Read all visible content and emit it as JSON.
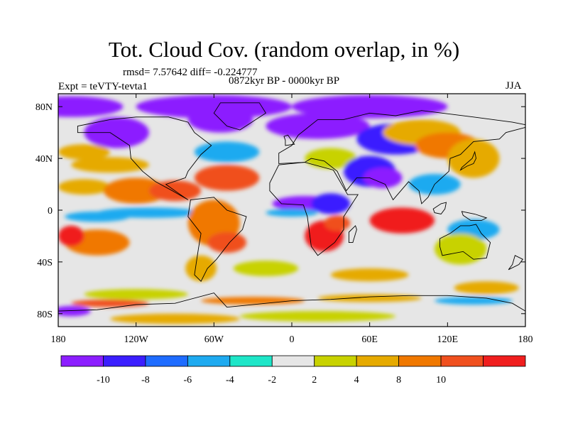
{
  "title": "Tot. Cloud Cov. (random overlap, in %)",
  "stats": "rmsd= 7.57642 diff= -0.224777",
  "period": "0872kyr BP - 0000kyr BP",
  "experiment": "Expt = teVTY-tevta1",
  "season": "JJA",
  "map": {
    "lon_range": [
      -180,
      180
    ],
    "lat_range": [
      -90,
      90
    ],
    "x_ticks": [
      {
        "lon": -180,
        "label": "180"
      },
      {
        "lon": -120,
        "label": "120W"
      },
      {
        "lon": -60,
        "label": "60W"
      },
      {
        "lon": 0,
        "label": "0"
      },
      {
        "lon": 60,
        "label": "60E"
      },
      {
        "lon": 120,
        "label": "120E"
      },
      {
        "lon": 180,
        "label": "180"
      }
    ],
    "y_ticks": [
      {
        "lat": 80,
        "label": "80N"
      },
      {
        "lat": 40,
        "label": "40N"
      },
      {
        "lat": 0,
        "label": "0"
      },
      {
        "lat": -40,
        "label": "40S"
      },
      {
        "lat": -80,
        "label": "80S"
      }
    ],
    "background_class": "-2 to 2",
    "regions": [
      {
        "lon": -170,
        "lat": 80,
        "rx": 40,
        "ry": 8,
        "class": -11
      },
      {
        "lon": -60,
        "lat": 80,
        "rx": 60,
        "ry": 9,
        "class": -11
      },
      {
        "lon": 60,
        "lat": 80,
        "rx": 60,
        "ry": 9,
        "class": -11
      },
      {
        "lon": -135,
        "lat": 60,
        "rx": 25,
        "ry": 12,
        "class": -11
      },
      {
        "lon": -55,
        "lat": 70,
        "rx": 25,
        "ry": 10,
        "class": -11
      },
      {
        "lon": 20,
        "lat": 65,
        "rx": 40,
        "ry": 10,
        "class": -11
      },
      {
        "lon": 80,
        "lat": 55,
        "rx": 30,
        "ry": 12,
        "class": -9
      },
      {
        "lon": -160,
        "lat": 45,
        "rx": 20,
        "ry": 6,
        "class": 5
      },
      {
        "lon": -140,
        "lat": 35,
        "rx": 30,
        "ry": 6,
        "class": 5
      },
      {
        "lon": -50,
        "lat": 45,
        "rx": 25,
        "ry": 8,
        "class": -5
      },
      {
        "lon": 100,
        "lat": 60,
        "rx": 30,
        "ry": 10,
        "class": 5
      },
      {
        "lon": 120,
        "lat": 50,
        "rx": 25,
        "ry": 10,
        "class": 7
      },
      {
        "lon": 140,
        "lat": 40,
        "rx": 20,
        "ry": 15,
        "class": 5
      },
      {
        "lon": 30,
        "lat": 40,
        "rx": 20,
        "ry": 8,
        "class": 3
      },
      {
        "lon": 60,
        "lat": 30,
        "rx": 20,
        "ry": 12,
        "class": -9
      },
      {
        "lon": 70,
        "lat": 25,
        "rx": 15,
        "ry": 8,
        "class": -11
      },
      {
        "lon": -160,
        "lat": 18,
        "rx": 20,
        "ry": 6,
        "class": 5
      },
      {
        "lon": -120,
        "lat": 15,
        "rx": 25,
        "ry": 10,
        "class": 7
      },
      {
        "lon": -90,
        "lat": 15,
        "rx": 20,
        "ry": 8,
        "class": 9
      },
      {
        "lon": -50,
        "lat": 25,
        "rx": 25,
        "ry": 10,
        "class": 9
      },
      {
        "lon": 110,
        "lat": 20,
        "rx": 20,
        "ry": 8,
        "class": -5
      },
      {
        "lon": -110,
        "lat": -2,
        "rx": 40,
        "ry": 4,
        "class": -5
      },
      {
        "lon": -150,
        "lat": -5,
        "rx": 25,
        "ry": 4,
        "class": -5
      },
      {
        "lon": 10,
        "lat": 5,
        "rx": 25,
        "ry": 6,
        "class": -11
      },
      {
        "lon": 30,
        "lat": 5,
        "rx": 15,
        "ry": 8,
        "class": -9
      },
      {
        "lon": 0,
        "lat": -2,
        "rx": 20,
        "ry": 3,
        "class": -5
      },
      {
        "lon": -60,
        "lat": -10,
        "rx": 20,
        "ry": 18,
        "class": 7
      },
      {
        "lon": -50,
        "lat": -25,
        "rx": 15,
        "ry": 8,
        "class": 9
      },
      {
        "lon": 25,
        "lat": -20,
        "rx": 15,
        "ry": 12,
        "class": 11
      },
      {
        "lon": 35,
        "lat": -10,
        "rx": 10,
        "ry": 6,
        "class": 9
      },
      {
        "lon": 85,
        "lat": -8,
        "rx": 25,
        "ry": 10,
        "class": 11
      },
      {
        "lon": 140,
        "lat": -15,
        "rx": 20,
        "ry": 8,
        "class": -5
      },
      {
        "lon": 130,
        "lat": -30,
        "rx": 20,
        "ry": 12,
        "class": 3
      },
      {
        "lon": -150,
        "lat": -25,
        "rx": 25,
        "ry": 10,
        "class": 7
      },
      {
        "lon": -170,
        "lat": -20,
        "rx": 10,
        "ry": 8,
        "class": 11
      },
      {
        "lon": -70,
        "lat": -45,
        "rx": 12,
        "ry": 10,
        "class": 5
      },
      {
        "lon": -20,
        "lat": -45,
        "rx": 25,
        "ry": 6,
        "class": 3
      },
      {
        "lon": 60,
        "lat": -50,
        "rx": 30,
        "ry": 5,
        "class": 5
      },
      {
        "lon": 150,
        "lat": -60,
        "rx": 25,
        "ry": 5,
        "class": 5
      },
      {
        "lon": -120,
        "lat": -65,
        "rx": 40,
        "ry": 4,
        "class": 3
      },
      {
        "lon": -140,
        "lat": -72,
        "rx": 30,
        "ry": 3,
        "class": 9
      },
      {
        "lon": -30,
        "lat": -70,
        "rx": 40,
        "ry": 3,
        "class": 7
      },
      {
        "lon": 60,
        "lat": -68,
        "rx": 40,
        "ry": 3,
        "class": 5
      },
      {
        "lon": 140,
        "lat": -70,
        "rx": 30,
        "ry": 3,
        "class": -5
      },
      {
        "lon": -170,
        "lat": -78,
        "rx": 15,
        "ry": 4,
        "class": -11
      },
      {
        "lon": 20,
        "lat": -82,
        "rx": 60,
        "ry": 4,
        "class": 3
      },
      {
        "lon": -90,
        "lat": -84,
        "rx": 50,
        "ry": 4,
        "class": 5
      }
    ],
    "land": [
      {
        "name": "north-america",
        "points": [
          [
            -165,
            65
          ],
          [
            -140,
            70
          ],
          [
            -120,
            72
          ],
          [
            -95,
            72
          ],
          [
            -80,
            68
          ],
          [
            -75,
            60
          ],
          [
            -62,
            50
          ],
          [
            -70,
            43
          ],
          [
            -80,
            30
          ],
          [
            -82,
            25
          ],
          [
            -97,
            20
          ],
          [
            -90,
            15
          ],
          [
            -83,
            10
          ],
          [
            -80,
            8
          ],
          [
            -92,
            15
          ],
          [
            -105,
            22
          ],
          [
            -115,
            30
          ],
          [
            -124,
            40
          ],
          [
            -125,
            50
          ],
          [
            -140,
            60
          ],
          [
            -165,
            60
          ]
        ]
      },
      {
        "name": "greenland",
        "points": [
          [
            -55,
            83
          ],
          [
            -25,
            83
          ],
          [
            -20,
            75
          ],
          [
            -40,
            62
          ],
          [
            -50,
            65
          ],
          [
            -60,
            75
          ]
        ]
      },
      {
        "name": "south-america",
        "points": [
          [
            -78,
            8
          ],
          [
            -60,
            10
          ],
          [
            -50,
            0
          ],
          [
            -35,
            -5
          ],
          [
            -38,
            -15
          ],
          [
            -48,
            -25
          ],
          [
            -58,
            -38
          ],
          [
            -65,
            -45
          ],
          [
            -70,
            -55
          ],
          [
            -75,
            -50
          ],
          [
            -72,
            -30
          ],
          [
            -70,
            -18
          ],
          [
            -80,
            -5
          ]
        ]
      },
      {
        "name": "eurasia",
        "points": [
          [
            -10,
            36
          ],
          [
            -10,
            44
          ],
          [
            0,
            50
          ],
          [
            5,
            58
          ],
          [
            10,
            62
          ],
          [
            20,
            70
          ],
          [
            40,
            70
          ],
          [
            60,
            75
          ],
          [
            80,
            73
          ],
          [
            100,
            77
          ],
          [
            140,
            72
          ],
          [
            170,
            68
          ],
          [
            180,
            66
          ],
          [
            180,
            64
          ],
          [
            165,
            60
          ],
          [
            160,
            55
          ],
          [
            140,
            53
          ],
          [
            130,
            43
          ],
          [
            122,
            40
          ],
          [
            121,
            30
          ],
          [
            110,
            20
          ],
          [
            105,
            10
          ],
          [
            100,
            5
          ],
          [
            98,
            15
          ],
          [
            90,
            22
          ],
          [
            78,
            8
          ],
          [
            72,
            20
          ],
          [
            60,
            25
          ],
          [
            50,
            25
          ],
          [
            42,
            15
          ],
          [
            35,
            30
          ],
          [
            25,
            38
          ],
          [
            15,
            40
          ],
          [
            10,
            37
          ]
        ]
      },
      {
        "name": "africa",
        "points": [
          [
            -17,
            21
          ],
          [
            -10,
            35
          ],
          [
            10,
            37
          ],
          [
            32,
            31
          ],
          [
            43,
            12
          ],
          [
            51,
            12
          ],
          [
            40,
            -5
          ],
          [
            40,
            -15
          ],
          [
            33,
            -25
          ],
          [
            20,
            -35
          ],
          [
            15,
            -28
          ],
          [
            12,
            -5
          ],
          [
            9,
            4
          ],
          [
            -8,
            5
          ],
          [
            -17,
            15
          ]
        ]
      },
      {
        "name": "australia",
        "points": [
          [
            114,
            -22
          ],
          [
            122,
            -18
          ],
          [
            130,
            -12
          ],
          [
            137,
            -12
          ],
          [
            142,
            -11
          ],
          [
            146,
            -18
          ],
          [
            153,
            -25
          ],
          [
            150,
            -37
          ],
          [
            140,
            -38
          ],
          [
            132,
            -32
          ],
          [
            116,
            -35
          ],
          [
            114,
            -28
          ]
        ]
      },
      {
        "name": "antarctica",
        "points": [
          [
            -180,
            -78
          ],
          [
            -150,
            -77
          ],
          [
            -120,
            -73
          ],
          [
            -90,
            -72
          ],
          [
            -60,
            -64
          ],
          [
            -50,
            -75
          ],
          [
            -20,
            -72
          ],
          [
            0,
            -70
          ],
          [
            30,
            -69
          ],
          [
            60,
            -67
          ],
          [
            90,
            -66
          ],
          [
            120,
            -66
          ],
          [
            150,
            -68
          ],
          [
            170,
            -72
          ],
          [
            180,
            -78
          ],
          [
            180,
            -90
          ],
          [
            -180,
            -90
          ]
        ]
      }
    ],
    "islands": [
      {
        "name": "madagascar",
        "points": [
          [
            44,
            -25
          ],
          [
            47,
            -25
          ],
          [
            50,
            -15
          ],
          [
            49,
            -12
          ],
          [
            44,
            -17
          ]
        ]
      },
      {
        "name": "japan",
        "points": [
          [
            130,
            31
          ],
          [
            135,
            34
          ],
          [
            140,
            36
          ],
          [
            142,
            40
          ],
          [
            141,
            45
          ],
          [
            139,
            40
          ],
          [
            131,
            33
          ]
        ]
      },
      {
        "name": "british-isles",
        "points": [
          [
            -5,
            50
          ],
          [
            2,
            51
          ],
          [
            -1,
            55
          ],
          [
            -3,
            58
          ],
          [
            -6,
            57
          ],
          [
            -5,
            54
          ]
        ]
      },
      {
        "name": "borneo",
        "points": [
          [
            109,
            1
          ],
          [
            115,
            5
          ],
          [
            119,
            6
          ],
          [
            118,
            1
          ],
          [
            115,
            -3
          ],
          [
            110,
            -2
          ]
        ]
      },
      {
        "name": "new-guinea",
        "points": [
          [
            131,
            -1
          ],
          [
            141,
            -3
          ],
          [
            150,
            -6
          ],
          [
            146,
            -8
          ],
          [
            138,
            -8
          ],
          [
            132,
            -4
          ]
        ]
      },
      {
        "name": "new-zealand",
        "points": [
          [
            172,
            -35
          ],
          [
            178,
            -38
          ],
          [
            175,
            -42
          ],
          [
            167,
            -46
          ],
          [
            170,
            -42
          ]
        ]
      }
    ]
  },
  "colorbar": {
    "colors": [
      "#8c1eff",
      "#3b1eff",
      "#1e6cff",
      "#1eaaf0",
      "#1ee6c8",
      "#e6e6e6",
      "#c8d200",
      "#e6aa00",
      "#f07800",
      "#f0501e",
      "#f01e1e"
    ],
    "labels": [
      "-10",
      "-8",
      "-6",
      "-4",
      "-2",
      "2",
      "4",
      "8",
      "10"
    ]
  }
}
